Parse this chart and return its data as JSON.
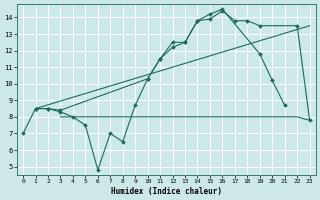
{
  "xlabel": "Humidex (Indice chaleur)",
  "bg_color": "#cce8e8",
  "grid_color": "#ffffff",
  "line_color": "#1a6b5a",
  "xlim_min": -0.5,
  "xlim_max": 23.5,
  "ylim_min": 4.5,
  "ylim_max": 14.8,
  "xticks": [
    0,
    1,
    2,
    3,
    4,
    5,
    6,
    7,
    8,
    9,
    10,
    11,
    12,
    13,
    14,
    15,
    16,
    17,
    18,
    19,
    20,
    21,
    22,
    23
  ],
  "yticks": [
    5,
    6,
    7,
    8,
    9,
    10,
    11,
    12,
    13,
    14
  ],
  "curve_jagged_x": [
    0,
    1,
    2,
    3,
    4,
    5,
    6,
    7,
    8,
    9,
    10,
    11,
    12,
    13,
    14,
    15,
    16,
    19,
    20,
    21
  ],
  "curve_jagged_y": [
    7.0,
    8.5,
    8.5,
    8.3,
    8.0,
    7.5,
    4.8,
    7.0,
    6.5,
    8.7,
    10.3,
    11.5,
    12.2,
    12.5,
    13.8,
    14.2,
    14.5,
    11.8,
    10.2,
    8.7
  ],
  "curve_upper_x": [
    1,
    2,
    3,
    10,
    11,
    12,
    13,
    14,
    15,
    16,
    17,
    18,
    19,
    22,
    23
  ],
  "curve_upper_y": [
    8.5,
    8.5,
    8.4,
    10.3,
    11.5,
    12.5,
    12.5,
    13.8,
    13.9,
    14.4,
    13.8,
    13.8,
    13.5,
    13.5,
    7.8
  ],
  "hline_x": [
    3,
    4,
    5,
    6,
    7,
    8,
    9,
    10,
    11,
    12,
    13,
    14,
    15,
    16,
    17,
    18,
    19,
    20,
    21,
    22,
    23
  ],
  "hline_y": [
    8.0,
    8.0,
    8.0,
    8.0,
    8.0,
    8.0,
    8.0,
    8.0,
    8.0,
    8.0,
    8.0,
    8.0,
    8.0,
    8.0,
    8.0,
    8.0,
    8.0,
    8.0,
    8.0,
    8.0,
    7.8
  ],
  "trend_x": [
    1,
    23
  ],
  "trend_y": [
    8.5,
    13.5
  ]
}
